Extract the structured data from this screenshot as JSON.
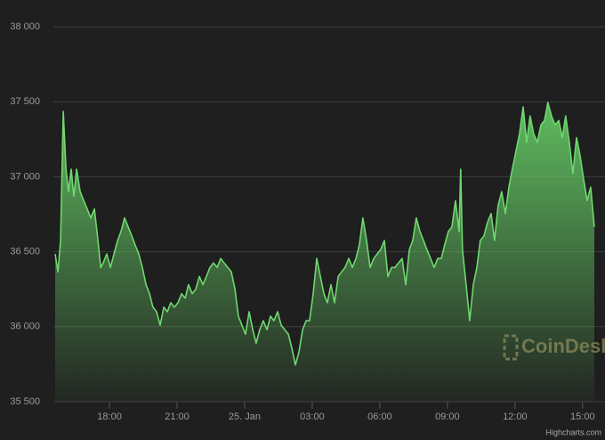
{
  "chart_data": {
    "type": "area",
    "x": [
      15.59,
      15.71,
      15.83,
      15.95,
      16.07,
      16.18,
      16.3,
      16.42,
      16.54,
      16.7,
      16.86,
      17.01,
      17.17,
      17.33,
      17.49,
      17.61,
      17.72,
      17.88,
      18.04,
      18.2,
      18.36,
      18.51,
      18.67,
      18.83,
      18.99,
      19.14,
      19.3,
      19.46,
      19.62,
      19.78,
      19.93,
      20.09,
      20.25,
      20.41,
      20.57,
      20.72,
      20.88,
      21.04,
      21.2,
      21.36,
      21.51,
      21.67,
      21.83,
      21.99,
      22.15,
      22.3,
      22.46,
      22.62,
      22.78,
      22.94,
      23.09,
      23.25,
      23.41,
      23.57,
      23.72,
      23.88,
      24.04,
      24.2,
      24.36,
      24.51,
      24.67,
      24.83,
      24.99,
      25.15,
      25.3,
      25.46,
      25.62,
      25.78,
      25.94,
      26.09,
      26.25,
      26.41,
      26.57,
      26.73,
      26.88,
      27.04,
      27.2,
      27.36,
      27.52,
      27.67,
      27.83,
      27.99,
      28.15,
      28.3,
      28.46,
      28.62,
      28.78,
      28.94,
      29.09,
      29.25,
      29.41,
      29.57,
      29.73,
      29.88,
      30.04,
      30.2,
      30.36,
      30.52,
      30.67,
      30.83,
      30.99,
      31.15,
      31.31,
      31.46,
      31.62,
      31.78,
      31.94,
      32.09,
      32.25,
      32.41,
      32.57,
      32.73,
      32.88,
      33.04,
      33.2,
      33.36,
      33.52,
      33.59,
      33.67,
      33.83,
      33.99,
      34.15,
      34.31,
      34.46,
      34.62,
      34.78,
      34.94,
      35.09,
      35.25,
      35.41,
      35.57,
      35.73,
      35.88,
      36.04,
      36.2,
      36.36,
      36.52,
      36.67,
      36.83,
      36.99,
      37.15,
      37.31,
      37.46,
      37.62,
      37.78,
      37.94,
      38.1,
      38.25,
      38.41,
      38.57,
      38.73,
      38.89,
      39.04,
      39.2,
      39.36,
      39.52
    ],
    "series": [
      {
        "color": "#6fd86f",
        "values": [
          36485,
          36365,
          36575,
          37435,
          37050,
          36900,
          37050,
          36870,
          37050,
          36900,
          36840,
          36785,
          36725,
          36785,
          36575,
          36395,
          36425,
          36485,
          36395,
          36485,
          36575,
          36635,
          36725,
          36665,
          36605,
          36545,
          36485,
          36395,
          36280,
          36220,
          36130,
          36100,
          36010,
          36130,
          36100,
          36160,
          36130,
          36160,
          36220,
          36190,
          36280,
          36220,
          36250,
          36335,
          36280,
          36335,
          36395,
          36425,
          36395,
          36455,
          36425,
          36395,
          36365,
          36250,
          36070,
          36010,
          35950,
          36100,
          35980,
          35890,
          35980,
          36040,
          35980,
          36070,
          36040,
          36100,
          36010,
          35980,
          35950,
          35860,
          35745,
          35830,
          35980,
          36040,
          36040,
          36220,
          36455,
          36335,
          36220,
          36160,
          36280,
          36160,
          36335,
          36365,
          36395,
          36455,
          36395,
          36455,
          36545,
          36725,
          36575,
          36395,
          36455,
          36485,
          36515,
          36575,
          36335,
          36395,
          36395,
          36425,
          36455,
          36280,
          36515,
          36575,
          36725,
          36635,
          36575,
          36515,
          36455,
          36395,
          36455,
          36455,
          36545,
          36635,
          36665,
          36840,
          36635,
          37050,
          36515,
          36280,
          36040,
          36280,
          36395,
          36575,
          36605,
          36695,
          36755,
          36575,
          36810,
          36900,
          36755,
          36930,
          37050,
          37170,
          37285,
          37465,
          37230,
          37405,
          37285,
          37230,
          37345,
          37375,
          37495,
          37405,
          37345,
          37375,
          37260,
          37405,
          37230,
          37020,
          37260,
          37140,
          36990,
          36840,
          36930,
          36665
        ]
      }
    ],
    "xlim": [
      15.51,
      39.6
    ],
    "xticks": [
      {
        "value": 18,
        "label": "18:00"
      },
      {
        "value": 21,
        "label": "21:00"
      },
      {
        "value": 24,
        "label": "25. Jan"
      },
      {
        "value": 27,
        "label": "03:00"
      },
      {
        "value": 30,
        "label": "06:00"
      },
      {
        "value": 33,
        "label": "09:00"
      },
      {
        "value": 36,
        "label": "12:00"
      },
      {
        "value": 39,
        "label": "15:00"
      }
    ],
    "ylim": [
      35500,
      38000
    ],
    "yticks": [
      {
        "value": 35500,
        "label": "35 500"
      },
      {
        "value": 36000,
        "label": "36 000"
      },
      {
        "value": 36500,
        "label": "36 500"
      },
      {
        "value": 37000,
        "label": "37 000"
      },
      {
        "value": 37500,
        "label": "37 500"
      },
      {
        "value": 38000,
        "label": "38 000"
      }
    ],
    "grid": true,
    "watermark": "CoinDesk",
    "credits": "Highcharts.com"
  }
}
